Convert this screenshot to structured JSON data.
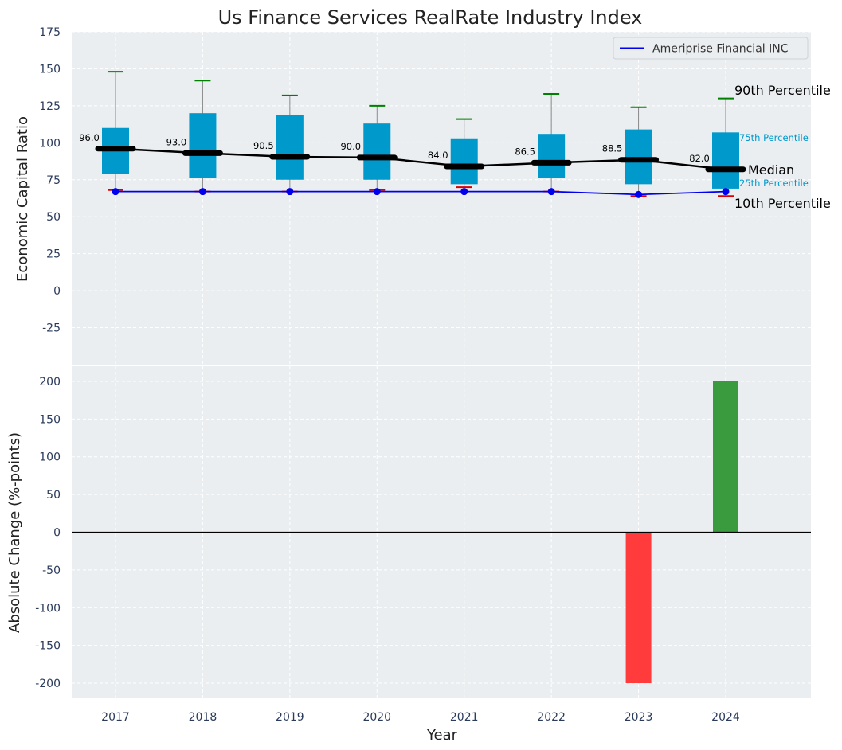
{
  "chart_data": {
    "type": "box",
    "title": "Us Finance Services RealRate Industry Index",
    "xlabel": "Year",
    "categories": [
      "2017",
      "2018",
      "2019",
      "2020",
      "2021",
      "2022",
      "2023",
      "2024"
    ],
    "top_panel": {
      "ylabel": "Economic Capital Ratio",
      "ylim": [
        -50,
        175
      ],
      "yticks": [
        -25,
        0,
        25,
        50,
        75,
        100,
        125,
        150,
        175
      ],
      "grid": true,
      "legend_position": "top-right",
      "boxes": [
        {
          "p10": 68,
          "p25": 79,
          "median": 96.0,
          "p75": 110,
          "p90": 148
        },
        {
          "p10": 67,
          "p25": 76,
          "median": 93.0,
          "p75": 120,
          "p90": 142
        },
        {
          "p10": 67,
          "p25": 75,
          "median": 90.5,
          "p75": 119,
          "p90": 132
        },
        {
          "p10": 68,
          "p25": 75,
          "median": 90.0,
          "p75": 113,
          "p90": 125
        },
        {
          "p10": 70,
          "p25": 72,
          "median": 84.0,
          "p75": 103,
          "p90": 116
        },
        {
          "p10": 67,
          "p25": 76,
          "median": 86.5,
          "p75": 106,
          "p90": 133
        },
        {
          "p10": 64,
          "p25": 72,
          "median": 88.5,
          "p75": 109,
          "p90": 124
        },
        {
          "p10": 64,
          "p25": 69,
          "median": 82.0,
          "p75": 107,
          "p90": 130
        }
      ],
      "median_labels": [
        "96.0",
        "93.0",
        "90.5",
        "90.0",
        "84.0",
        "86.5",
        "88.5",
        "82.0"
      ],
      "series": [
        {
          "name": "Ameriprise Financial INC",
          "values": [
            67,
            67,
            67,
            67,
            67,
            67,
            65,
            67
          ]
        }
      ],
      "annotations": {
        "p90": "90th Percentile",
        "p75": "75th Percentile",
        "median": "Median",
        "p25": "25th Percentile",
        "p10": "10th Percentile"
      }
    },
    "bottom_panel": {
      "ylabel": "Absolute Change (%-points)",
      "ylim": [
        -220,
        220
      ],
      "yticks": [
        -200,
        -150,
        -100,
        -50,
        0,
        50,
        100,
        150,
        200
      ],
      "grid": true,
      "values": [
        0,
        0,
        0,
        0,
        0,
        0,
        -200,
        200
      ]
    },
    "colors": {
      "box": "#0099cc",
      "median_line": "#000000",
      "company_line": "#0000ee",
      "p90_cap": "#008000",
      "p10_cap": "#dd0000",
      "positive_bar": "#3a9a3e",
      "negative_bar": "#ff3b3b",
      "panel_bg": "#eaeef0",
      "tick_text": "#2b3b5c"
    }
  }
}
